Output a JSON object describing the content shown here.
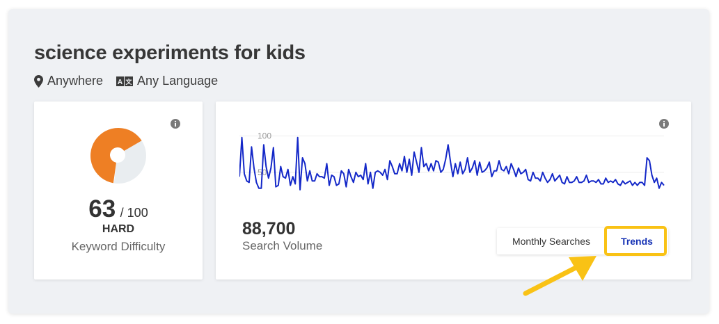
{
  "keyword": {
    "title": "science experiments for kids"
  },
  "filters": {
    "location": "Anywhere",
    "language": "Any Language"
  },
  "difficulty": {
    "score": "63",
    "max": "/ 100",
    "level": "HARD",
    "label": "Keyword Difficulty",
    "value": 63,
    "color": "#ee7f24"
  },
  "volume": {
    "value": "88,700",
    "label": "Search Volume"
  },
  "toggle": {
    "monthly_label": "Monthly Searches",
    "trends_label": "Trends",
    "selected": "Trends"
  },
  "chart_data": {
    "type": "line",
    "series": [
      {
        "values": [
          44,
          98,
          48,
          38,
          36,
          85,
          56,
          36,
          28,
          28,
          88,
          58,
          42,
          56,
          84,
          30,
          32,
          58,
          44,
          42,
          54,
          32,
          44,
          34,
          98,
          26,
          70,
          62,
          38,
          52,
          38,
          38,
          48,
          44,
          44,
          42,
          62,
          32,
          46,
          44,
          32,
          34,
          52,
          48,
          30,
          54,
          44,
          36,
          50,
          44,
          46,
          40,
          62,
          34,
          50,
          28,
          50,
          52,
          50,
          46,
          54,
          40,
          66,
          58,
          48,
          48,
          62,
          52,
          72,
          50,
          68,
          46,
          78,
          64,
          50,
          84,
          58,
          62,
          52,
          62,
          52,
          66,
          64,
          50,
          54,
          68,
          88,
          64,
          44,
          62,
          48,
          64,
          48,
          54,
          70,
          50,
          56,
          66,
          46,
          64,
          50,
          52,
          56,
          64,
          44,
          52,
          52,
          66,
          54,
          52,
          58,
          48,
          62,
          54,
          44,
          56,
          48,
          50,
          54,
          40,
          38,
          50,
          42,
          42,
          38,
          50,
          42,
          36,
          40,
          48,
          38,
          42,
          46,
          36,
          34,
          44,
          36,
          36,
          38,
          44,
          36,
          36,
          38,
          46,
          36,
          38,
          38,
          36,
          40,
          34,
          34,
          42,
          36,
          38,
          36,
          40,
          34,
          32,
          38,
          34,
          36,
          38,
          32,
          36,
          32,
          36,
          36,
          32,
          70,
          66,
          46,
          36,
          42,
          28,
          36,
          32
        ]
      }
    ],
    "ytick_labels": [
      "100",
      "50"
    ],
    "ylim": [
      0,
      115
    ],
    "line_color": "#1428c8",
    "grid": true
  }
}
